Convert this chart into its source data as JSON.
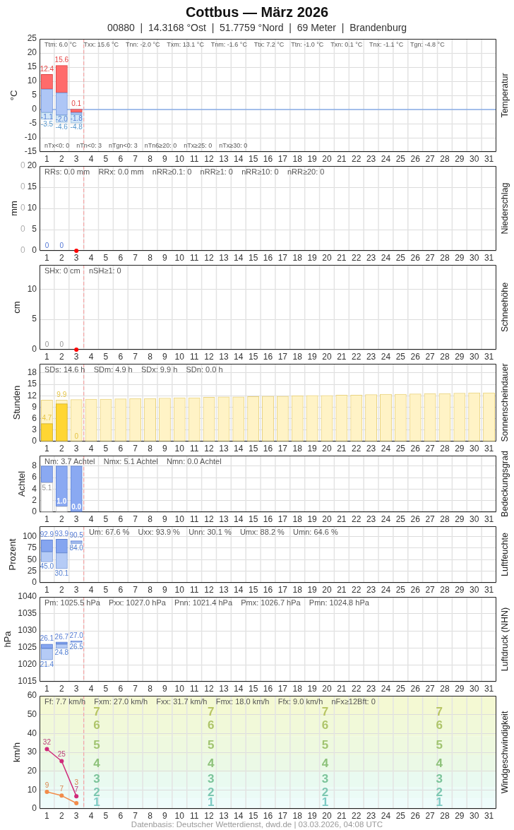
{
  "chart_data": [
    {
      "type": "bar",
      "title": "Cottbus — März 2026",
      "subtitle": "00880  |  14.3168 °Ost  |  51.7759 °Nord  |  69 Meter  |  Brandenburg",
      "ylabel": "°C",
      "y2label": "Temperatur",
      "annotations": [
        "Ttm: 6.0 °C    Txx: 15.6 °C    Tnn: -2.0 °C    Txm: 13.1 °C    Tnm: -1.6 °C    Ttx: 7.2 °C    Ttn: -1.0 °C    Txn: 0.1 °C    Tnx: -1.1 °C    Tgn: -4.8 °C",
        "nTx<0: 0    nTn<0: 3    nTgn<0: 3    nTn6≥20: 0    nTx≥25: 0    nTx≥30: 0"
      ],
      "xlim": [
        0.5,
        31.5
      ],
      "xticks": [
        1,
        2,
        3,
        4,
        5,
        6,
        7,
        8,
        9,
        10,
        11,
        12,
        13,
        14,
        15,
        16,
        17,
        18,
        19,
        20,
        21,
        22,
        23,
        24,
        25,
        26,
        27,
        28,
        29,
        30,
        31
      ],
      "ylim": [
        -15,
        25
      ],
      "yticks": [
        -15,
        -10,
        -5,
        0,
        5,
        10,
        15,
        20,
        25
      ],
      "grid": true,
      "series": [
        {
          "color": "#ff6b6b",
          "x": [
            1,
            2,
            3
          ],
          "base": [
            7.2,
            5.9,
            -1.0
          ],
          "values": [
            5.2,
            9.7,
            1.1
          ],
          "value_labels": [
            "12.4",
            "15.6",
            "0.1"
          ]
        },
        {
          "color": "#aec6f6",
          "x": [
            1,
            2,
            3
          ],
          "base": [
            7.2,
            5.9,
            -1.0
          ],
          "values": [
            -8.3,
            -7.9,
            -0.8
          ],
          "value_labels": [
            "-1.1",
            "-2.0",
            "-1.8"
          ]
        },
        {
          "color": "#d3e7f8",
          "x": [
            1,
            2,
            3
          ],
          "base": [
            -1.1,
            -2.0,
            -1.8
          ],
          "values": [
            -2.4,
            -2.6,
            -3.0
          ],
          "value_labels": [
            "-3.5",
            "-4.6",
            "-4.8"
          ]
        }
      ],
      "ref_lines": [
        {
          "axis": "y",
          "value": 0,
          "color": "#5b8fe8"
        },
        {
          "axis": "x",
          "value": 3.5,
          "color": "#f4a6a6",
          "line_style": "dashed"
        }
      ]
    },
    {
      "type": "bar",
      "ylabel": "mm",
      "y2label": "Niederschlag",
      "annotations": [
        "RRs: 0.0 mm    RRx: 0.0 mm    nRR≥0.1: 0    nRR≥1: 0    nRR≥10: 0    nRR≥20: 0",
        "0",
        "0",
        "0",
        "0",
        "0"
      ],
      "xlim": [
        0.5,
        31.5
      ],
      "xticks": [
        1,
        2,
        3,
        4,
        5,
        6,
        7,
        8,
        9,
        10,
        11,
        12,
        13,
        14,
        15,
        16,
        17,
        18,
        19,
        20,
        21,
        22,
        23,
        24,
        25,
        26,
        27,
        28,
        29,
        30,
        31
      ],
      "ylim": [
        0,
        20
      ],
      "yticks": [
        0,
        5,
        10,
        15,
        20
      ],
      "grid": true,
      "marker": "circle",
      "series": [
        {
          "color": "#6b8ff0",
          "x": [
            1,
            2
          ],
          "values": [
            0,
            0
          ],
          "value_labels": [
            "0",
            "0"
          ]
        },
        {
          "type": "scatter",
          "color": "#ff0000",
          "x": [
            3
          ],
          "values": [
            0
          ]
        }
      ],
      "ref_lines": [
        {
          "axis": "x",
          "value": 3.5,
          "color": "#f4a6a6",
          "line_style": "dashed"
        }
      ]
    },
    {
      "type": "bar",
      "ylabel": "cm",
      "y2label": "Schneehöhe",
      "annotations": [
        "SHx: 0 cm    nSH≥1: 0"
      ],
      "xlim": [
        0.5,
        31.5
      ],
      "xticks": [
        1,
        2,
        3,
        4,
        5,
        6,
        7,
        8,
        9,
        10,
        11,
        12,
        13,
        14,
        15,
        16,
        17,
        18,
        19,
        20,
        21,
        22,
        23,
        24,
        25,
        26,
        27,
        28,
        29,
        30,
        31
      ],
      "ylim": [
        0,
        14
      ],
      "yticks": [
        0,
        5,
        10
      ],
      "grid": true,
      "marker": "circle",
      "series": [
        {
          "color": "#aaaaaa",
          "x": [
            1,
            2
          ],
          "values": [
            0,
            0
          ],
          "value_labels": [
            "0",
            "0"
          ]
        },
        {
          "type": "scatter",
          "color": "#ff0000",
          "x": [
            3
          ],
          "values": [
            0
          ]
        }
      ],
      "ref_lines": [
        {
          "axis": "x",
          "value": 3.5,
          "color": "#f4a6a6",
          "line_style": "dashed"
        }
      ]
    },
    {
      "type": "bar",
      "ylabel": "Stunden",
      "y2label": "Sonnenscheindauer",
      "annotations": [
        "SDs: 14.6 h    SDm: 4.9 h    SDx: 9.9 h    SDn: 0.0 h"
      ],
      "xlim": [
        0.5,
        31.5
      ],
      "xticks": [
        1,
        2,
        3,
        4,
        5,
        6,
        7,
        8,
        9,
        10,
        11,
        12,
        13,
        14,
        15,
        16,
        17,
        18,
        19,
        20,
        21,
        22,
        23,
        24,
        25,
        26,
        27,
        28,
        29,
        30,
        31
      ],
      "ylim": [
        0,
        20.4
      ],
      "yticks": [
        0,
        3,
        6,
        9,
        12,
        15,
        18
      ],
      "grid": true,
      "series": [
        {
          "color": "#fff3c6",
          "x": [
            1,
            2,
            3,
            4,
            5,
            6,
            7,
            8,
            9,
            10,
            11,
            12,
            13,
            14,
            15,
            16,
            17,
            18,
            19,
            20,
            21,
            22,
            23,
            24,
            25,
            26,
            27,
            28,
            29,
            30,
            31
          ],
          "values": [
            10.9,
            10.9,
            11.0,
            11.1,
            11.1,
            11.2,
            11.3,
            11.3,
            11.4,
            11.5,
            11.5,
            11.6,
            11.7,
            11.7,
            11.8,
            11.9,
            11.9,
            12.0,
            12.1,
            12.1,
            12.2,
            12.2,
            12.3,
            12.4,
            12.4,
            12.5,
            12.6,
            12.6,
            12.7,
            12.8,
            12.8
          ]
        },
        {
          "color": "#ffd633",
          "x": [
            1,
            2,
            3
          ],
          "values": [
            4.7,
            9.9,
            0
          ],
          "value_labels": [
            "4.7",
            "9.9",
            "0"
          ]
        }
      ],
      "ref_lines": [
        {
          "axis": "x",
          "value": 3.5,
          "color": "#f4a6a6",
          "line_style": "dashed"
        }
      ]
    },
    {
      "type": "bar",
      "ylabel": "Achtel",
      "y2label": "Bedeckungsgrad",
      "annotations": [
        "Nm: 3.7 Achtel    Nmx: 5.1 Achtel    Nmn: 0.0 Achtel"
      ],
      "xlim": [
        0.5,
        31.5
      ],
      "xticks": [
        1,
        2,
        3,
        4,
        5,
        6,
        7,
        8,
        9,
        10,
        11,
        12,
        13,
        14,
        15,
        16,
        17,
        18,
        19,
        20,
        21,
        22,
        23,
        24,
        25,
        26,
        27,
        28,
        29,
        30,
        31
      ],
      "ylim": [
        0,
        9.8
      ],
      "yticks": [
        0,
        2,
        4,
        6,
        8
      ],
      "grid": true,
      "stacked": true,
      "series": [
        {
          "color": "#ffffff",
          "x": [
            1,
            2,
            3
          ],
          "values": [
            5.1,
            1.0,
            0.0
          ],
          "value_labels": [
            "5.1",
            "1.0",
            "0.0"
          ]
        },
        {
          "color": "#8aa9f2",
          "x": [
            1,
            2,
            3
          ],
          "values": [
            2.9,
            7.0,
            8.0
          ]
        }
      ],
      "ref_lines": [
        {
          "axis": "x",
          "value": 3.5,
          "color": "#f4a6a6",
          "line_style": "dashed"
        }
      ]
    },
    {
      "type": "bar",
      "ylabel": "Prozent",
      "y2label": "Luftfeuchte",
      "annotations": [
        "Um: 67.6 %    Uxx: 93.9 %    Unn: 30.1 %    Umx: 88.2 %    Umn: 64.6 %"
      ],
      "xlim": [
        0.5,
        31.5
      ],
      "xticks": [
        1,
        2,
        3,
        4,
        5,
        6,
        7,
        8,
        9,
        10,
        11,
        12,
        13,
        14,
        15,
        16,
        17,
        18,
        19,
        20,
        21,
        22,
        23,
        24,
        25,
        26,
        27,
        28,
        29,
        30,
        31
      ],
      "ylim": [
        0,
        122
      ],
      "yticks": [
        0,
        25,
        50,
        75,
        100
      ],
      "grid": true,
      "series": [
        {
          "color": "#85a5f0",
          "x": [
            1,
            2,
            3
          ],
          "base": [
            67,
            64.6,
            88.2
          ],
          "values": [
            25.9,
            29.3,
            2.3
          ],
          "value_labels": [
            "92.9",
            "93.9",
            "90.5"
          ]
        },
        {
          "color": "#b5cbf6",
          "x": [
            1,
            2,
            3
          ],
          "base": [
            67,
            64.6,
            88.2
          ],
          "values": [
            -22,
            -34.5,
            -4.2
          ],
          "value_labels": [
            "45.0",
            "30.1",
            "84.0"
          ]
        }
      ],
      "ref_lines": [
        {
          "axis": "x",
          "value": 3.5,
          "color": "#f4a6a6",
          "line_style": "dashed"
        }
      ]
    },
    {
      "type": "bar",
      "ylabel": "hPa",
      "y2label": "Luftdruck (NHN)",
      "annotations": [
        "Pm: 1025.5 hPa    Pxx: 1027.0 hPa    Pnn: 1021.4 hPa    Pmx: 1026.7 hPa    Pmn: 1024.8 hPa",
        {
          "text": "26.1",
          "x": 1,
          "y": 1026.1
        },
        {
          "text": "26.7",
          "x": 2,
          "y": 1026.7
        },
        {
          "text": "27.0",
          "x": 3,
          "y": 1027.0
        },
        {
          "text": "21.4",
          "x": 1,
          "y": 1021.4
        },
        {
          "text": "24.8",
          "x": 2,
          "y": 1024.8
        },
        {
          "text": "26.5",
          "x": 3,
          "y": 1026.5
        }
      ],
      "xlim": [
        0.5,
        31.5
      ],
      "xticks": [
        1,
        2,
        3,
        4,
        5,
        6,
        7,
        8,
        9,
        10,
        11,
        12,
        13,
        14,
        15,
        16,
        17,
        18,
        19,
        20,
        21,
        22,
        23,
        24,
        25,
        26,
        27,
        28,
        29,
        30,
        31
      ],
      "ylim": [
        1015,
        1040
      ],
      "yticks": [
        1015,
        1020,
        1025,
        1030,
        1035,
        1040
      ],
      "grid": true,
      "series": [
        {
          "color": "#85a5f0",
          "x": [
            1,
            2,
            3
          ],
          "base": [
            1024.8,
            1026.1,
            1026.7
          ],
          "values": [
            1.3,
            0.6,
            0.3
          ]
        },
        {
          "color": "#b5cbf6",
          "x": [
            1,
            2,
            3
          ],
          "base": [
            1024.8,
            1026.1,
            1026.7
          ],
          "values": [
            -3.4,
            -1.3,
            -0.2
          ]
        }
      ],
      "ref_lines": [
        {
          "axis": "x",
          "value": 3.5,
          "color": "#f4a6a6",
          "line_style": "dashed"
        }
      ]
    },
    {
      "type": "line",
      "ylabel": "km/h",
      "y2label": "Windgeschwindigkeit",
      "annotations": [
        "Ff: 7.7 km/h    Fxm: 27.0 km/h    Fxx: 31.7 km/h    Fmx: 18.0 km/h    Ffx: 9.0 km/h    nFx≥12Bft: 0"
      ],
      "xlim": [
        0.5,
        31.5
      ],
      "xticks": [
        1,
        2,
        3,
        4,
        5,
        6,
        7,
        8,
        9,
        10,
        11,
        12,
        13,
        14,
        15,
        16,
        17,
        18,
        19,
        20,
        21,
        22,
        23,
        24,
        25,
        26,
        27,
        28,
        29,
        30,
        31
      ],
      "ylim": [
        0,
        60
      ],
      "yticks": [
        0,
        10,
        20,
        30,
        40,
        50,
        60
      ],
      "grid": true,
      "marker": "circle",
      "series": [
        {
          "color": "#d02a7a",
          "x": [
            1,
            2,
            3
          ],
          "values": [
            31.7,
            25.3,
            6.7
          ],
          "value_labels": [
            "32",
            "25",
            "7"
          ]
        },
        {
          "color": "#f28c4a",
          "x": [
            1,
            2,
            3
          ],
          "values": [
            9.0,
            7.0,
            3.0
          ],
          "value_labels": [
            "9",
            "7",
            "3"
          ]
        }
      ],
      "bands": [
        {
          "axis": "y",
          "from": 0,
          "to": 1,
          "color": "#f2fdfd"
        },
        {
          "axis": "y",
          "from": 1,
          "to": 5.5,
          "color": "#eefcfb",
          "label": "1"
        },
        {
          "axis": "y",
          "from": 5.5,
          "to": 11.5,
          "color": "#ebfbf6",
          "label": "2"
        },
        {
          "axis": "y",
          "from": 11.5,
          "to": 19.5,
          "color": "#e9faf0",
          "label": "3"
        },
        {
          "axis": "y",
          "from": 19.5,
          "to": 28.5,
          "color": "#ebf9e6",
          "label": "4"
        },
        {
          "axis": "y",
          "from": 28.5,
          "to": 38.5,
          "color": "#eef9df",
          "label": "5"
        },
        {
          "axis": "y",
          "from": 38.5,
          "to": 49.5,
          "color": "#f1f9d9",
          "label": "6"
        },
        {
          "axis": "y",
          "from": 49.5,
          "to": 60,
          "color": "#f4f9d3",
          "label": "7"
        }
      ],
      "ref_lines": [
        {
          "axis": "x",
          "value": 3.5,
          "color": "#f4a6a6",
          "line_style": "dashed"
        }
      ]
    },
    {
      "type": "other",
      "annotations": [
        "Datenbasis: Deutscher Wetterdienst, dwd.de | 03.03.2026, 04:08 UTC"
      ]
    }
  ]
}
